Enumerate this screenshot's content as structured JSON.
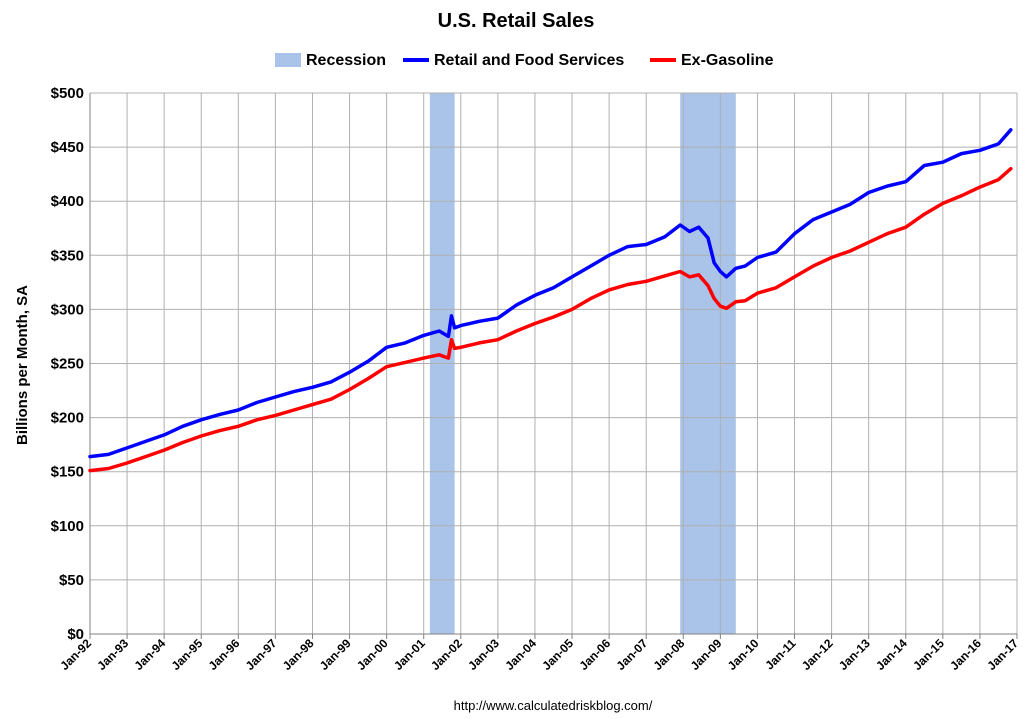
{
  "chart_data": {
    "type": "line",
    "title": "U.S. Retail Sales",
    "ylabel": "Billions per Month, SA",
    "xlabel": "",
    "source": "http://www.calculatedriskblog.com/",
    "ylim": [
      0,
      500
    ],
    "xlim": [
      "1992-01",
      "2017-01"
    ],
    "grid": true,
    "legend_position": "top",
    "yticks": [
      "$0",
      "$50",
      "$100",
      "$150",
      "$200",
      "$250",
      "$300",
      "$350",
      "$400",
      "$450",
      "$500"
    ],
    "ytick_values": [
      0,
      50,
      100,
      150,
      200,
      250,
      300,
      350,
      400,
      450,
      500
    ],
    "xticks": [
      "Jan-92",
      "Jan-93",
      "Jan-94",
      "Jan-95",
      "Jan-96",
      "Jan-97",
      "Jan-98",
      "Jan-99",
      "Jan-00",
      "Jan-01",
      "Jan-02",
      "Jan-03",
      "Jan-04",
      "Jan-05",
      "Jan-06",
      "Jan-07",
      "Jan-08",
      "Jan-09",
      "Jan-10",
      "Jan-11",
      "Jan-12",
      "Jan-13",
      "Jan-14",
      "Jan-15",
      "Jan-16",
      "Jan-17"
    ],
    "xtick_dates": [
      "1992-01",
      "1993-01",
      "1994-01",
      "1995-01",
      "1996-01",
      "1997-01",
      "1998-01",
      "1999-01",
      "2000-01",
      "2001-01",
      "2002-01",
      "2003-01",
      "2004-01",
      "2005-01",
      "2006-01",
      "2007-01",
      "2008-01",
      "2009-01",
      "2010-01",
      "2011-01",
      "2012-01",
      "2013-01",
      "2014-01",
      "2015-01",
      "2016-01",
      "2017-01"
    ],
    "recessions": [
      {
        "start": "2001-03",
        "end": "2001-11"
      },
      {
        "start": "2007-12",
        "end": "2009-06"
      }
    ],
    "legend": [
      {
        "label": "Recession",
        "kind": "box",
        "color": "#a9c4e8"
      },
      {
        "label": "Retail and Food Services",
        "kind": "line",
        "color": "#0000ff"
      },
      {
        "label": "Ex-Gasoline",
        "kind": "line",
        "color": "#ff0000"
      }
    ],
    "series": [
      {
        "name": "Retail and Food Services",
        "color": "#0000ff",
        "points": [
          [
            "1992-01",
            164
          ],
          [
            "1992-07",
            166
          ],
          [
            "1993-01",
            172
          ],
          [
            "1993-07",
            178
          ],
          [
            "1994-01",
            184
          ],
          [
            "1994-07",
            192
          ],
          [
            "1995-01",
            198
          ],
          [
            "1995-07",
            203
          ],
          [
            "1996-01",
            207
          ],
          [
            "1996-07",
            214
          ],
          [
            "1997-01",
            219
          ],
          [
            "1997-07",
            224
          ],
          [
            "1998-01",
            228
          ],
          [
            "1998-07",
            233
          ],
          [
            "1999-01",
            242
          ],
          [
            "1999-07",
            252
          ],
          [
            "2000-01",
            265
          ],
          [
            "2000-07",
            269
          ],
          [
            "2001-01",
            276
          ],
          [
            "2001-06",
            280
          ],
          [
            "2001-09",
            275
          ],
          [
            "2001-10",
            294
          ],
          [
            "2001-11",
            283
          ],
          [
            "2002-01",
            285
          ],
          [
            "2002-07",
            289
          ],
          [
            "2003-01",
            292
          ],
          [
            "2003-07",
            304
          ],
          [
            "2004-01",
            313
          ],
          [
            "2004-07",
            320
          ],
          [
            "2005-01",
            330
          ],
          [
            "2005-07",
            340
          ],
          [
            "2006-01",
            350
          ],
          [
            "2006-07",
            358
          ],
          [
            "2007-01",
            360
          ],
          [
            "2007-07",
            367
          ],
          [
            "2007-12",
            378
          ],
          [
            "2008-03",
            372
          ],
          [
            "2008-06",
            376
          ],
          [
            "2008-09",
            366
          ],
          [
            "2008-11",
            343
          ],
          [
            "2009-01",
            335
          ],
          [
            "2009-03",
            330
          ],
          [
            "2009-06",
            338
          ],
          [
            "2009-09",
            340
          ],
          [
            "2010-01",
            348
          ],
          [
            "2010-07",
            353
          ],
          [
            "2011-01",
            370
          ],
          [
            "2011-07",
            383
          ],
          [
            "2012-01",
            390
          ],
          [
            "2012-07",
            397
          ],
          [
            "2013-01",
            408
          ],
          [
            "2013-07",
            414
          ],
          [
            "2014-01",
            418
          ],
          [
            "2014-07",
            433
          ],
          [
            "2015-01",
            436
          ],
          [
            "2015-07",
            444
          ],
          [
            "2016-01",
            447
          ],
          [
            "2016-07",
            453
          ],
          [
            "2016-11",
            466
          ]
        ]
      },
      {
        "name": "Ex-Gasoline",
        "color": "#ff0000",
        "points": [
          [
            "1992-01",
            151
          ],
          [
            "1992-07",
            153
          ],
          [
            "1993-01",
            158
          ],
          [
            "1993-07",
            164
          ],
          [
            "1994-01",
            170
          ],
          [
            "1994-07",
            177
          ],
          [
            "1995-01",
            183
          ],
          [
            "1995-07",
            188
          ],
          [
            "1996-01",
            192
          ],
          [
            "1996-07",
            198
          ],
          [
            "1997-01",
            202
          ],
          [
            "1997-07",
            207
          ],
          [
            "1998-01",
            212
          ],
          [
            "1998-07",
            217
          ],
          [
            "1999-01",
            226
          ],
          [
            "1999-07",
            236
          ],
          [
            "2000-01",
            247
          ],
          [
            "2000-07",
            251
          ],
          [
            "2001-01",
            255
          ],
          [
            "2001-06",
            258
          ],
          [
            "2001-09",
            255
          ],
          [
            "2001-10",
            272
          ],
          [
            "2001-11",
            264
          ],
          [
            "2002-01",
            265
          ],
          [
            "2002-07",
            269
          ],
          [
            "2003-01",
            272
          ],
          [
            "2003-07",
            280
          ],
          [
            "2004-01",
            287
          ],
          [
            "2004-07",
            293
          ],
          [
            "2005-01",
            300
          ],
          [
            "2005-07",
            310
          ],
          [
            "2006-01",
            318
          ],
          [
            "2006-07",
            323
          ],
          [
            "2007-01",
            326
          ],
          [
            "2007-07",
            331
          ],
          [
            "2007-12",
            335
          ],
          [
            "2008-03",
            330
          ],
          [
            "2008-06",
            332
          ],
          [
            "2008-09",
            322
          ],
          [
            "2008-11",
            310
          ],
          [
            "2009-01",
            303
          ],
          [
            "2009-03",
            301
          ],
          [
            "2009-06",
            307
          ],
          [
            "2009-09",
            308
          ],
          [
            "2010-01",
            315
          ],
          [
            "2010-07",
            320
          ],
          [
            "2011-01",
            330
          ],
          [
            "2011-07",
            340
          ],
          [
            "2012-01",
            348
          ],
          [
            "2012-07",
            354
          ],
          [
            "2013-01",
            362
          ],
          [
            "2013-07",
            370
          ],
          [
            "2014-01",
            376
          ],
          [
            "2014-07",
            388
          ],
          [
            "2015-01",
            398
          ],
          [
            "2015-07",
            405
          ],
          [
            "2016-01",
            413
          ],
          [
            "2016-07",
            420
          ],
          [
            "2016-11",
            430
          ]
        ]
      }
    ]
  }
}
